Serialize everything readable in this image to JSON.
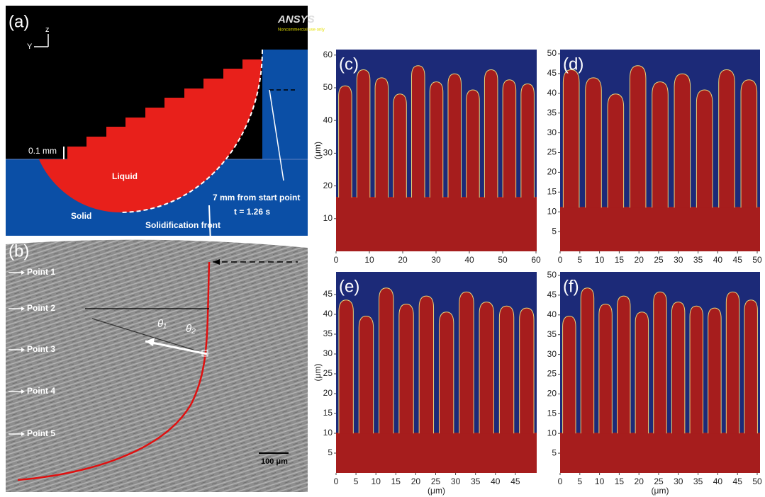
{
  "panel_a": {
    "label": "(a)",
    "axis_z": "z",
    "axis_y": "Y",
    "logo": "ANSYS",
    "logo_note": "Noncommercial use only",
    "layer_height": "0.1 mm",
    "liquid": "Liquid",
    "solid": "Solid",
    "front": "Solidification front",
    "distance": "7 mm from start point",
    "time": "t = 1.26 s"
  },
  "panel_b": {
    "label": "(b)",
    "points": [
      "Point 1",
      "Point 2",
      "Point 3",
      "Point 4",
      "Point 5"
    ],
    "theta1": "θ₁",
    "theta2": "θ₂",
    "scale_bar": "100 μm"
  },
  "panels": [
    {
      "label": "(c)",
      "xticks": [
        0,
        10,
        20,
        30,
        40,
        50,
        60
      ],
      "yticks": [
        10,
        20,
        30,
        40,
        50,
        60
      ],
      "y_label": "(μm)"
    },
    {
      "label": "(d)",
      "xticks": [
        0,
        5,
        10,
        15,
        20,
        25,
        30,
        35,
        40,
        45,
        50
      ],
      "yticks": [
        5,
        10,
        15,
        20,
        25,
        30,
        35,
        40,
        45,
        50
      ]
    },
    {
      "label": "(e)",
      "xticks": [
        0,
        5,
        10,
        15,
        20,
        25,
        30,
        35,
        40,
        45
      ],
      "yticks": [
        5,
        10,
        15,
        20,
        25,
        30,
        35,
        40,
        45
      ],
      "y_label": "(μm)",
      "x_label": "(μm)"
    },
    {
      "label": "(f)",
      "xticks": [
        0,
        5,
        10,
        15,
        20,
        25,
        30,
        35,
        40,
        45,
        50
      ],
      "yticks": [
        5,
        10,
        15,
        20,
        25,
        30,
        35,
        40,
        45,
        50
      ],
      "x_label": "(μm)"
    }
  ]
}
